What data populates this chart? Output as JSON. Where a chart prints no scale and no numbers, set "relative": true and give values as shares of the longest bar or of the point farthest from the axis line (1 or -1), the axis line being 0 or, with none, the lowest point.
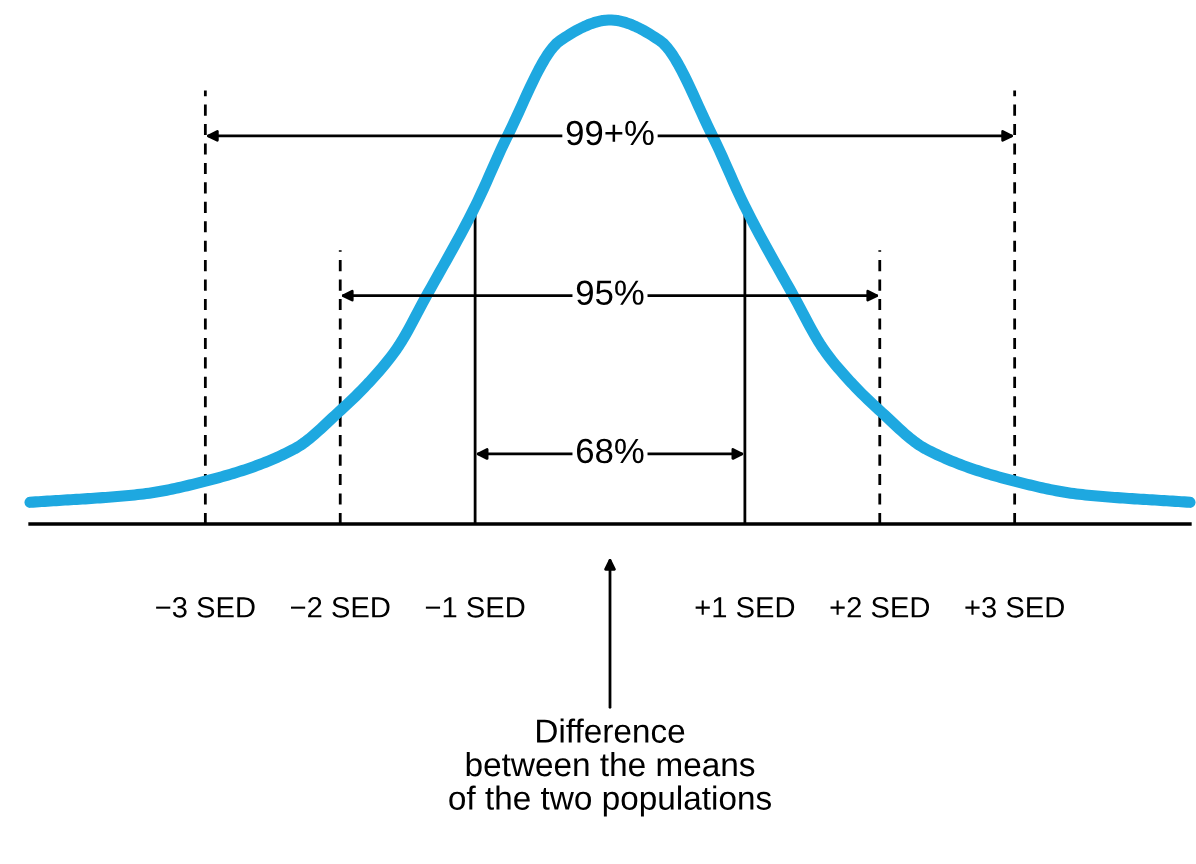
{
  "chart_data": {
    "type": "line",
    "relative": true,
    "x": [
      -4.3,
      -3.48,
      -3,
      -2.34,
      -2,
      -1.79,
      -1.58,
      -1.36,
      -1,
      -0.76,
      -0.37,
      0,
      0.37,
      0.76,
      1,
      1.36,
      1.58,
      1.79,
      2,
      2.34,
      3,
      3.48,
      4.3
    ],
    "series": [
      {
        "color": "#1ea8e0",
        "values": [
          0.043,
          0.059,
          0.085,
          0.149,
          0.225,
          0.28,
          0.348,
          0.453,
          0.63,
          0.77,
          0.959,
          1.0,
          0.959,
          0.77,
          0.63,
          0.453,
          0.348,
          0.28,
          0.225,
          0.149,
          0.085,
          0.059,
          0.043
        ]
      }
    ],
    "xlim": [
      -4.3,
      4.3
    ],
    "xticks": [
      {
        "value": -3,
        "label": "−3 SED"
      },
      {
        "value": -2,
        "label": "−2 SED"
      },
      {
        "value": -1,
        "label": "−1 SED"
      },
      {
        "value": 1,
        "label": "+1 SED"
      },
      {
        "value": 2,
        "label": "+2 SED"
      },
      {
        "value": 3,
        "label": "+3 SED"
      }
    ],
    "ref_lines": [
      {
        "axis": "x",
        "value": -3,
        "color": "#000000",
        "line_style": "dashed"
      },
      {
        "axis": "x",
        "value": -2,
        "color": "#000000",
        "line_style": "dashed"
      },
      {
        "axis": "x",
        "value": -1,
        "color": "#000000",
        "line_style": "solid"
      },
      {
        "axis": "x",
        "value": 1,
        "color": "#000000",
        "line_style": "solid"
      },
      {
        "axis": "x",
        "value": 2,
        "color": "#000000",
        "line_style": "dashed"
      },
      {
        "axis": "x",
        "value": 3,
        "color": "#000000",
        "line_style": "dashed"
      }
    ],
    "annotations": [
      "99+%",
      "95%",
      "68%",
      "Difference\nbetween the means\nof the two populations"
    ],
    "grid": false,
    "legend": false,
    "marker": "none",
    "line_style": "solid"
  }
}
